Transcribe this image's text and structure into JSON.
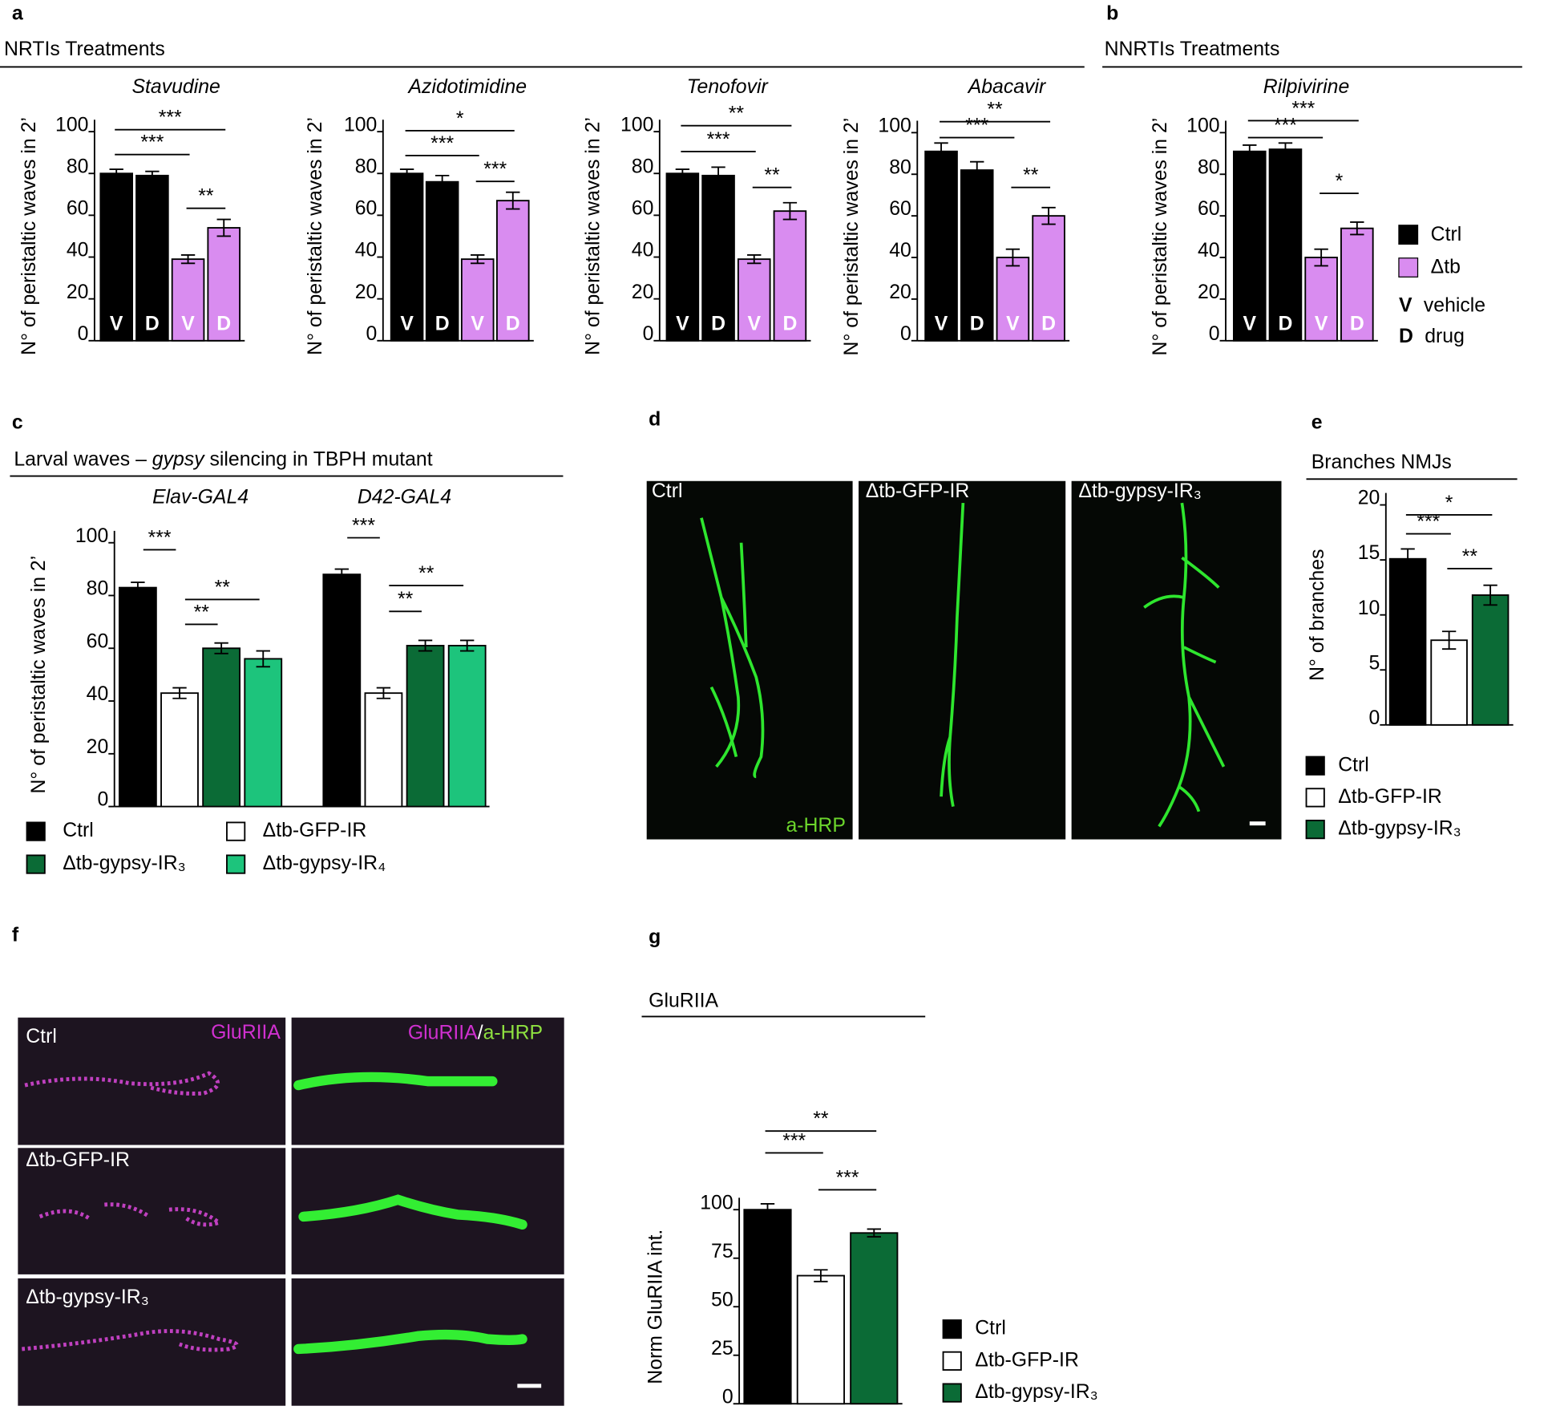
{
  "panel_labels": [
    "a",
    "b",
    "c",
    "d",
    "e",
    "f",
    "g"
  ],
  "sections": {
    "a": "NRTIs Treatments",
    "b": "NNRTIs Treatments"
  },
  "legend_ab": {
    "items": [
      {
        "name": "Ctrl",
        "color": "#000000"
      },
      {
        "name": "Δtb",
        "color": "#d98cf0"
      }
    ],
    "notes": [
      {
        "key": "V",
        "text": "vehicle"
      },
      {
        "key": "D",
        "text": "drug"
      }
    ]
  },
  "chart_data": [
    {
      "type": "bar",
      "title": "Stavudine",
      "ylabel": "N° of peristaltic waves in 2’",
      "categories": [
        "V",
        "D",
        "V",
        "D"
      ],
      "values": [
        80,
        79,
        39,
        54
      ],
      "errors": [
        2,
        2,
        2,
        4
      ],
      "colors": [
        "#000000",
        "#000000",
        "#d98cf0",
        "#d98cf0"
      ],
      "ylim": [
        0,
        100
      ],
      "yticks": [
        0,
        20,
        40,
        60,
        80,
        100
      ],
      "brackets": [
        {
          "text": "***",
          "between": [
            0,
            3
          ]
        },
        {
          "text": "***",
          "between": [
            0,
            2
          ]
        },
        {
          "text": "**",
          "between": [
            2,
            3
          ]
        }
      ]
    },
    {
      "type": "bar",
      "title": "Azidotimidine",
      "ylabel": "N° of peristaltic waves in 2’",
      "categories": [
        "V",
        "D",
        "V",
        "D"
      ],
      "values": [
        80,
        76,
        39,
        67
      ],
      "errors": [
        2,
        3,
        2,
        4
      ],
      "colors": [
        "#000000",
        "#000000",
        "#d98cf0",
        "#d98cf0"
      ],
      "ylim": [
        0,
        100
      ],
      "yticks": [
        0,
        20,
        40,
        60,
        80,
        100
      ],
      "brackets": [
        {
          "text": "*",
          "between": [
            0,
            3
          ]
        },
        {
          "text": "***",
          "between": [
            0,
            2
          ]
        },
        {
          "text": "***",
          "between": [
            2,
            3
          ]
        }
      ]
    },
    {
      "type": "bar",
      "title": "Tenofovir",
      "ylabel": "N° of peristaltic waves in 2’",
      "categories": [
        "V",
        "D",
        "V",
        "D"
      ],
      "values": [
        80,
        79,
        39,
        62
      ],
      "errors": [
        2,
        4,
        2,
        4
      ],
      "colors": [
        "#000000",
        "#000000",
        "#d98cf0",
        "#d98cf0"
      ],
      "ylim": [
        0,
        100
      ],
      "yticks": [
        0,
        20,
        40,
        60,
        80,
        100
      ],
      "brackets": [
        {
          "text": "**",
          "between": [
            0,
            3
          ]
        },
        {
          "text": "***",
          "between": [
            0,
            2
          ]
        },
        {
          "text": "**",
          "between": [
            2,
            3
          ]
        }
      ]
    },
    {
      "type": "bar",
      "title": "Abacavir",
      "ylabel": "N° of peristaltic waves in 2’",
      "categories": [
        "V",
        "D",
        "V",
        "D"
      ],
      "values": [
        91,
        82,
        40,
        60
      ],
      "errors": [
        4,
        4,
        4,
        4
      ],
      "colors": [
        "#000000",
        "#000000",
        "#d98cf0",
        "#d98cf0"
      ],
      "ylim": [
        0,
        100
      ],
      "yticks": [
        0,
        20,
        40,
        60,
        80,
        100
      ],
      "brackets": [
        {
          "text": "**",
          "between": [
            0,
            3
          ]
        },
        {
          "text": "***",
          "between": [
            0,
            2
          ]
        },
        {
          "text": "**",
          "between": [
            2,
            3
          ]
        }
      ]
    },
    {
      "type": "bar",
      "title": "Rilpivirine",
      "ylabel": "N° of peristaltic waves in 2’",
      "categories": [
        "V",
        "D",
        "V",
        "D"
      ],
      "values": [
        91,
        92,
        40,
        54
      ],
      "errors": [
        3,
        3,
        4,
        3
      ],
      "colors": [
        "#000000",
        "#000000",
        "#d98cf0",
        "#d98cf0"
      ],
      "ylim": [
        0,
        100
      ],
      "yticks": [
        0,
        20,
        40,
        60,
        80,
        100
      ],
      "brackets": [
        {
          "text": "***",
          "between": [
            0,
            3
          ]
        },
        {
          "text": "***",
          "between": [
            0,
            2
          ]
        },
        {
          "text": "*",
          "between": [
            2,
            3
          ]
        }
      ]
    },
    {
      "type": "grouped",
      "title_parts": [
        "Larval waves – ",
        "gypsy",
        " silencing in TBPH mutant"
      ],
      "ylabel": "N° of peristaltic waves in 2’",
      "categories": [
        "Elav-GAL4",
        "D42-GAL4"
      ],
      "series": [
        {
          "name": "Ctrl",
          "color": "#000000",
          "values": [
            83,
            88
          ],
          "errors": [
            2,
            2
          ]
        },
        {
          "name": "Δtb-GFP-IR",
          "color": "#ffffff",
          "values": [
            43,
            43
          ],
          "errors": [
            2,
            2
          ]
        },
        {
          "name": "Δtb-gypsy-IR₃",
          "color": "#0b6b36",
          "values": [
            60,
            61
          ],
          "errors": [
            2,
            2
          ]
        },
        {
          "name": "Δtb-gypsy-IR₄",
          "color": "#1dc47c",
          "values": [
            56,
            61
          ],
          "errors": [
            3,
            2
          ]
        }
      ],
      "ylim": [
        0,
        100
      ],
      "yticks": [
        0,
        20,
        40,
        60,
        80,
        100
      ],
      "brackets": [
        [
          {
            "text": "***",
            "between": [
              0,
              1
            ]
          },
          {
            "text": "**",
            "between": [
              1,
              3
            ]
          },
          {
            "text": "**",
            "between": [
              1,
              2
            ]
          }
        ],
        [
          {
            "text": "***",
            "between": [
              0,
              1
            ]
          },
          {
            "text": "**",
            "between": [
              1,
              3
            ]
          },
          {
            "text": "**",
            "between": [
              1,
              2
            ]
          }
        ]
      ]
    },
    {
      "type": "bar",
      "title": "Branches NMJs",
      "ylabel": "N° of branches",
      "categories": [
        "Ctrl",
        "Δtb-GFP-IR",
        "Δtb-gypsy-IR₃"
      ],
      "values": [
        15.1,
        7.7,
        11.8
      ],
      "errors": [
        0.9,
        0.8,
        0.9
      ],
      "colors": [
        "#000000",
        "#ffffff",
        "#0b6b36"
      ],
      "ylim": [
        0,
        20
      ],
      "yticks": [
        0,
        5,
        10,
        15,
        20
      ],
      "brackets": [
        {
          "text": "***",
          "between": [
            0,
            1
          ]
        },
        {
          "text": "*",
          "between": [
            0,
            2
          ]
        },
        {
          "text": "**",
          "between": [
            1,
            2
          ]
        }
      ]
    },
    {
      "type": "bar",
      "title": "GluRIIA",
      "ylabel": "Norm GluRIIA int.",
      "categories": [
        "Ctrl",
        "Δtb-GFP-IR",
        "Δtb-gypsy-IR₃"
      ],
      "values": [
        100,
        66,
        88
      ],
      "errors": [
        3,
        3,
        2
      ],
      "colors": [
        "#000000",
        "#ffffff",
        "#0b6b36"
      ],
      "ylim": [
        0,
        100
      ],
      "yticks": [
        0,
        25,
        50,
        75,
        100
      ],
      "brackets": [
        {
          "text": "**",
          "between": [
            0,
            2
          ]
        },
        {
          "text": "***",
          "between": [
            0,
            1
          ]
        },
        {
          "text": "***",
          "between": [
            1,
            2
          ]
        }
      ]
    }
  ],
  "image_d": {
    "panels": [
      "Ctrl",
      "Δtb-GFP-IR",
      "Δtb-gypsy-IR₃"
    ],
    "stain": "a-HRP"
  },
  "image_f": {
    "rows": [
      "Ctrl",
      "Δtb-GFP-IR",
      "Δtb-gypsy-IR₃"
    ],
    "stain1": "GluRIIA",
    "sep": "/",
    "stain2": "a-HRP"
  }
}
